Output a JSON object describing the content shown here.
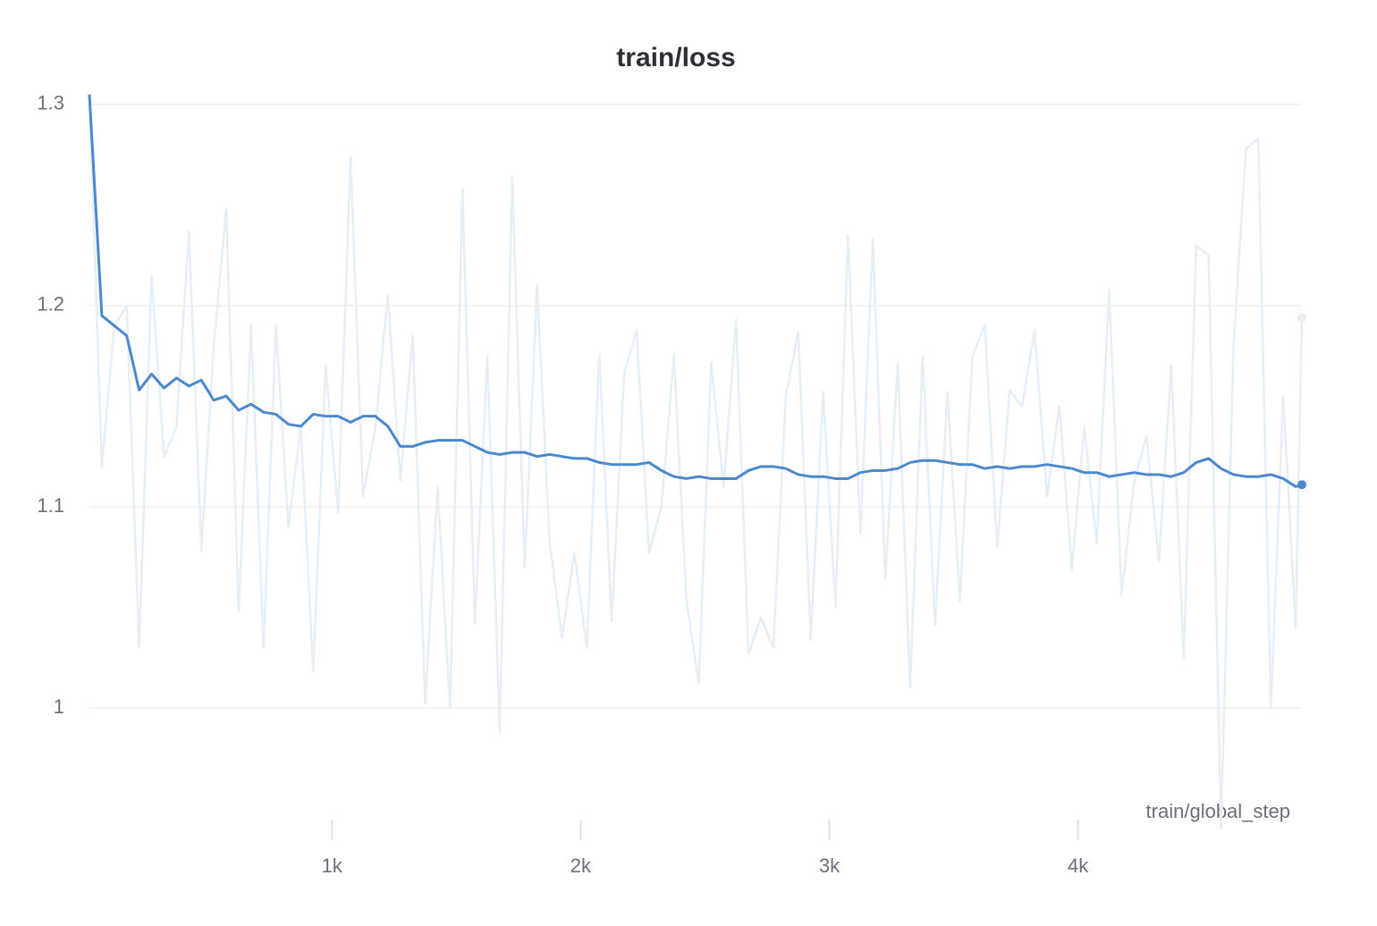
{
  "chart_data": {
    "type": "line",
    "title": "train/loss",
    "x_label": "train/global_step",
    "x": [
      25,
      75,
      125,
      175,
      225,
      275,
      325,
      375,
      425,
      475,
      525,
      575,
      625,
      675,
      725,
      775,
      825,
      875,
      925,
      975,
      1025,
      1075,
      1125,
      1175,
      1225,
      1275,
      1325,
      1375,
      1425,
      1475,
      1525,
      1575,
      1625,
      1675,
      1725,
      1775,
      1825,
      1875,
      1925,
      1975,
      2025,
      2075,
      2125,
      2175,
      2225,
      2275,
      2325,
      2375,
      2425,
      2475,
      2525,
      2575,
      2625,
      2675,
      2725,
      2775,
      2825,
      2875,
      2925,
      2975,
      3025,
      3075,
      3125,
      3175,
      3225,
      3275,
      3325,
      3375,
      3425,
      3475,
      3525,
      3575,
      3625,
      3675,
      3725,
      3775,
      3825,
      3875,
      3925,
      3975,
      4025,
      4075,
      4125,
      4175,
      4225,
      4275,
      4325,
      4375,
      4425,
      4475,
      4525,
      4575,
      4625,
      4675,
      4725,
      4775,
      4825,
      4875,
      4900
    ],
    "series": [
      {
        "color": "#e6eef8",
        "values": [
          1.305,
          1.12,
          1.19,
          1.2,
          1.03,
          1.215,
          1.125,
          1.14,
          1.237,
          1.078,
          1.18,
          1.248,
          1.048,
          1.19,
          1.03,
          1.19,
          1.09,
          1.14,
          1.018,
          1.17,
          1.097,
          1.274,
          1.105,
          1.14,
          1.205,
          1.113,
          1.185,
          1.002,
          1.11,
          1.0,
          1.258,
          1.042,
          1.175,
          0.988,
          1.264,
          1.07,
          1.21,
          1.083,
          1.035,
          1.077,
          1.03,
          1.176,
          1.043,
          1.166,
          1.188,
          1.077,
          1.1,
          1.175,
          1.054,
          1.012,
          1.172,
          1.11,
          1.193,
          1.027,
          1.045,
          1.03,
          1.155,
          1.187,
          1.034,
          1.157,
          1.05,
          1.235,
          1.087,
          1.233,
          1.064,
          1.171,
          1.01,
          1.175,
          1.041,
          1.157,
          1.053,
          1.175,
          1.19,
          1.08,
          1.158,
          1.15,
          1.188,
          1.105,
          1.15,
          1.069,
          1.14,
          1.082,
          1.208,
          1.056,
          1.112,
          1.135,
          1.073,
          1.17,
          1.025,
          1.23,
          1.225,
          0.94,
          1.18,
          1.278,
          1.283,
          1.0,
          1.155,
          1.04,
          1.194
        ]
      },
      {
        "color": "#4a88cf",
        "values": [
          1.305,
          1.195,
          1.19,
          1.185,
          1.158,
          1.166,
          1.159,
          1.164,
          1.16,
          1.163,
          1.153,
          1.155,
          1.148,
          1.151,
          1.147,
          1.146,
          1.141,
          1.14,
          1.146,
          1.145,
          1.145,
          1.142,
          1.145,
          1.145,
          1.14,
          1.13,
          1.13,
          1.132,
          1.133,
          1.133,
          1.133,
          1.13,
          1.127,
          1.126,
          1.127,
          1.127,
          1.125,
          1.126,
          1.125,
          1.124,
          1.124,
          1.122,
          1.121,
          1.121,
          1.121,
          1.122,
          1.118,
          1.115,
          1.114,
          1.115,
          1.114,
          1.114,
          1.114,
          1.118,
          1.12,
          1.12,
          1.119,
          1.116,
          1.115,
          1.115,
          1.114,
          1.114,
          1.117,
          1.118,
          1.118,
          1.119,
          1.122,
          1.123,
          1.123,
          1.122,
          1.121,
          1.121,
          1.119,
          1.12,
          1.119,
          1.12,
          1.12,
          1.121,
          1.12,
          1.119,
          1.117,
          1.117,
          1.115,
          1.116,
          1.117,
          1.116,
          1.116,
          1.115,
          1.117,
          1.122,
          1.124,
          1.119,
          1.116,
          1.115,
          1.115,
          1.116,
          1.114,
          1.11,
          1.111
        ]
      }
    ],
    "xlim": [
      25,
      4900
    ],
    "ylim": [
      0.94,
      1.3075
    ],
    "xticks": [
      {
        "value": 1000,
        "label": "1k"
      },
      {
        "value": 2000,
        "label": "2k"
      },
      {
        "value": 3000,
        "label": "3k"
      },
      {
        "value": 4000,
        "label": "4k"
      }
    ],
    "yticks": [
      1,
      1.1,
      1.2,
      1.3
    ],
    "grid": true
  }
}
